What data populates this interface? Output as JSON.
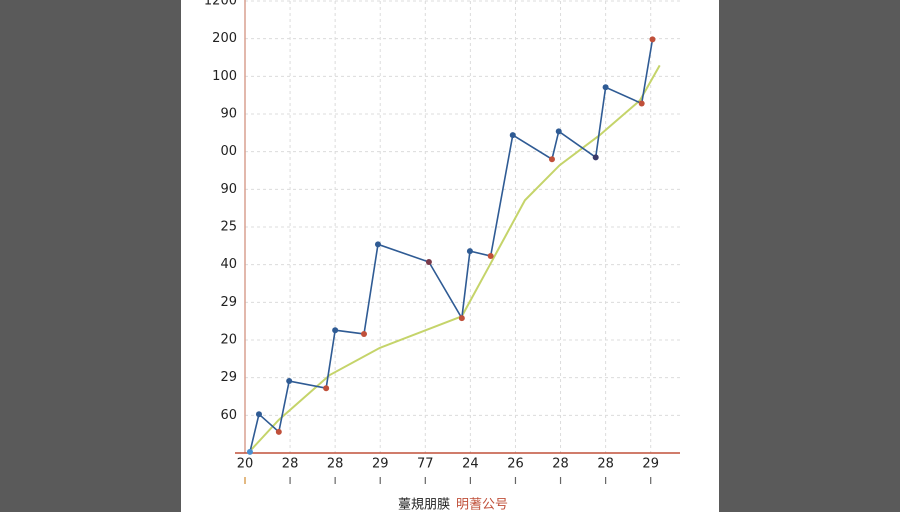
{
  "chart_data": {
    "type": "line",
    "x_label": "薹規朋朠",
    "x_label_highlight": "明蓍公号",
    "xlim": [
      0,
      9.65
    ],
    "ylim": [
      0,
      12
    ],
    "xticks": [
      {
        "value": 0,
        "label": "20"
      },
      {
        "value": 1,
        "label": "28"
      },
      {
        "value": 2,
        "label": "28"
      },
      {
        "value": 3,
        "label": "29"
      },
      {
        "value": 4,
        "label": "77"
      },
      {
        "value": 5,
        "label": "24"
      },
      {
        "value": 6,
        "label": "26"
      },
      {
        "value": 7,
        "label": "28"
      },
      {
        "value": 8,
        "label": "28"
      },
      {
        "value": 9,
        "label": "29"
      }
    ],
    "yticks": [
      {
        "value": 1,
        "label": "60"
      },
      {
        "value": 2,
        "label": "29"
      },
      {
        "value": 3,
        "label": "20"
      },
      {
        "value": 4,
        "label": "29"
      },
      {
        "value": 5,
        "label": "40"
      },
      {
        "value": 6,
        "label": "25"
      },
      {
        "value": 7,
        "label": "90"
      },
      {
        "value": 8,
        "label": "00"
      },
      {
        "value": 9,
        "label": "90"
      },
      {
        "value": 10,
        "label": "100"
      },
      {
        "value": 11,
        "label": "200"
      },
      {
        "value": 12,
        "label": "1200"
      }
    ],
    "grid": true,
    "series": [
      {
        "color": "#2f5b94",
        "x": [
          0.11,
          0.31,
          0.75,
          0.98,
          1.8,
          2.0,
          2.64,
          2.95,
          4.08,
          4.81,
          4.99,
          5.45,
          5.94,
          6.81,
          6.96,
          7.78,
          8.0,
          8.8,
          9.04
        ],
        "values": [
          0.03,
          1.03,
          0.56,
          1.91,
          1.72,
          3.26,
          3.16,
          5.54,
          5.07,
          3.58,
          5.36,
          5.23,
          8.44,
          7.8,
          8.54,
          7.85,
          9.71,
          9.28,
          10.98
        ],
        "marker_colors": [
          "#4a8fd0",
          "#2f5b94",
          "#c0503a",
          "#2f5b94",
          "#c0503a",
          "#2f5b94",
          "#c0503a",
          "#2f5b94",
          "#7a3a4a",
          "#c0503a",
          "#2f5b94",
          "#c0503a",
          "#2f5b94",
          "#c0503a",
          "#2f5b94",
          "#3a3a6a",
          "#2f5b94",
          "#c0503a",
          "#c0503a"
        ]
      },
      {
        "color": "#c5d46a",
        "x": [
          0.07,
          0.75,
          1.88,
          2.99,
          4.81,
          5.43,
          6.21,
          6.98,
          7.87,
          8.76,
          9.2
        ],
        "values": [
          0,
          0.88,
          2.07,
          2.79,
          3.63,
          4.99,
          6.71,
          7.64,
          8.44,
          9.36,
          10.29
        ]
      }
    ]
  }
}
